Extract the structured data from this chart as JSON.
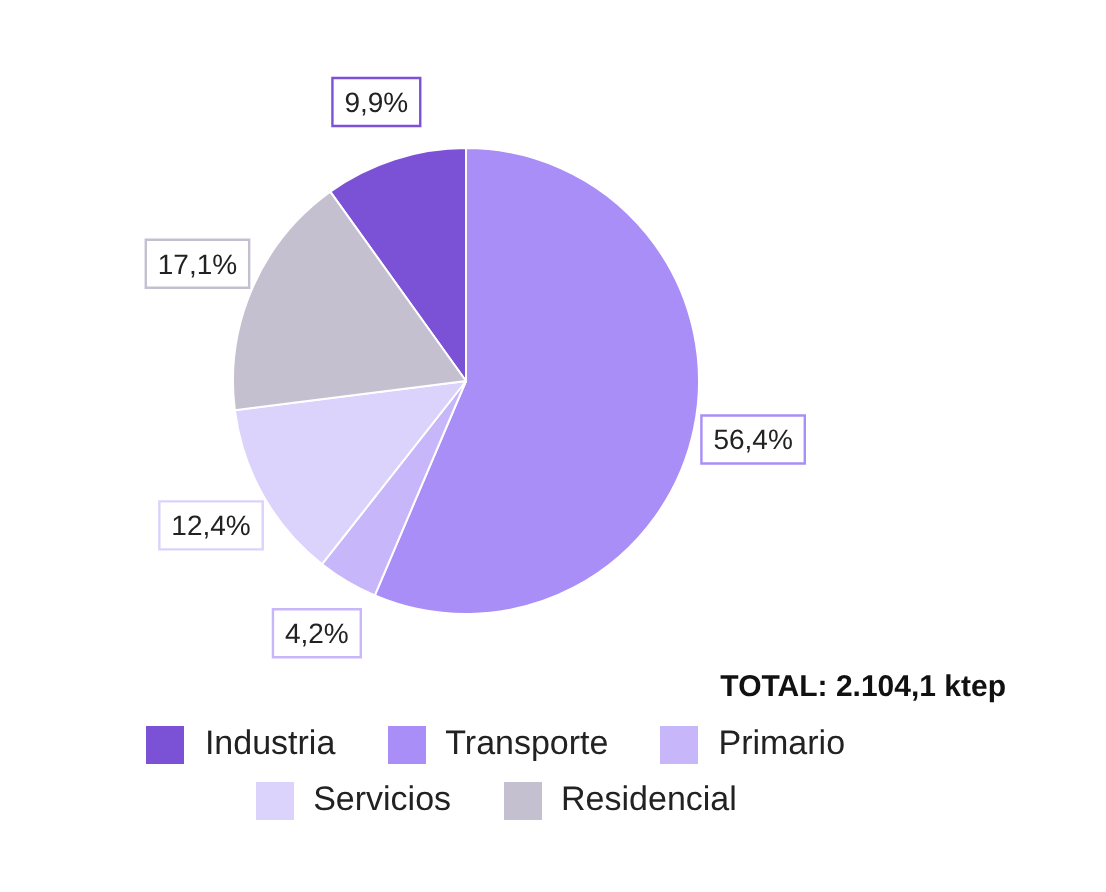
{
  "chart_data": {
    "type": "pie",
    "categories": [
      "Industria",
      "Transporte",
      "Primario",
      "Servicios",
      "Residencial"
    ],
    "values": [
      9.9,
      56.4,
      4.2,
      12.4,
      17.1
    ],
    "colors": [
      "#7b52d6",
      "#a98ef7",
      "#c8b6fa",
      "#dcd3fc",
      "#c4c0d0"
    ],
    "value_labels": [
      "9,9%",
      "56,4%",
      "4,2%",
      "12,4%",
      "17,1%"
    ],
    "annotations": [
      "TOTAL: 2.104,1 ktep"
    ],
    "legend": "bottom"
  }
}
